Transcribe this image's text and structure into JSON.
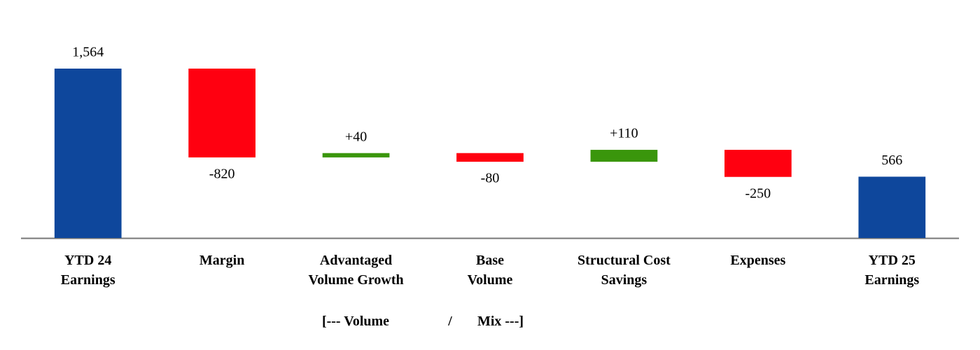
{
  "chart_data": {
    "type": "waterfall",
    "categories": [
      [
        "YTD 24",
        "Earnings"
      ],
      [
        "Margin"
      ],
      [
        "Advantaged",
        "Volume Growth"
      ],
      [
        "Base",
        "Volume"
      ],
      [
        "Structural Cost",
        "Savings"
      ],
      [
        "Expenses"
      ],
      [
        "YTD 25",
        "Earnings"
      ]
    ],
    "values": [
      1564,
      -820,
      40,
      -80,
      110,
      -250,
      566
    ],
    "value_labels": [
      "1,564",
      "-820",
      "+40",
      "-80",
      "+110",
      "-250",
      "566"
    ],
    "is_total": [
      true,
      false,
      false,
      false,
      false,
      false,
      true
    ],
    "colors": {
      "total": "#0e479c",
      "increase": "#3a960c",
      "decrease": "#ff0010"
    },
    "annotations": [
      "[--- Volume",
      "/",
      "Mix ---]"
    ]
  }
}
